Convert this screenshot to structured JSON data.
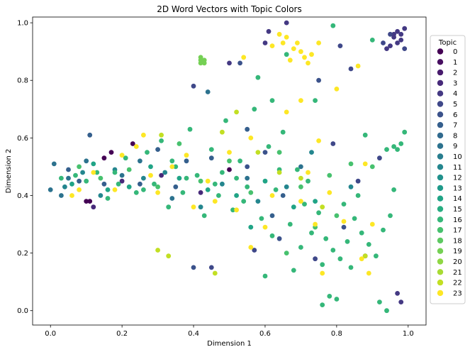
{
  "chart_data": {
    "type": "scatter",
    "title": "2D Word Vectors with Topic Colors",
    "xlabel": "Dimension 1",
    "ylabel": "Dimension 2",
    "xlim": [
      -0.05,
      1.05
    ],
    "ylim": [
      -0.05,
      1.02
    ],
    "xticks": [
      "0.0",
      "0.2",
      "0.4",
      "0.6",
      "0.8",
      "1.0"
    ],
    "xtick_values": [
      0.0,
      0.2,
      0.4,
      0.6,
      0.8,
      1.0
    ],
    "yticks": [
      "0.0",
      "0.2",
      "0.4",
      "0.6",
      "0.8",
      "1.0"
    ],
    "ytick_values": [
      0.0,
      0.2,
      0.4,
      0.6,
      0.8,
      1.0
    ],
    "grid": false,
    "legend": {
      "title": "Topic",
      "placement": "right",
      "entries": [
        "0",
        "1",
        "2",
        "3",
        "4",
        "5",
        "6",
        "7",
        "8",
        "9",
        "10",
        "11",
        "12",
        "13",
        "14",
        "15",
        "16",
        "17",
        "18",
        "19",
        "20",
        "21",
        "22",
        "23"
      ]
    },
    "colors": [
      "#440154",
      "#470e61",
      "#481b6d",
      "#472a7a",
      "#443983",
      "#3f4889",
      "#3b528b",
      "#355f8d",
      "#306a8e",
      "#2c728e",
      "#287d8e",
      "#24868e",
      "#21918c",
      "#1f9a8a",
      "#20a486",
      "#27ad81",
      "#35b779",
      "#47c16e",
      "#5ec962",
      "#75d054",
      "#8fd744",
      "#a8db34",
      "#c2df23",
      "#fde725"
    ],
    "series": [
      {
        "topic": 0,
        "points": [
          [
            0.11,
            0.38
          ],
          [
            0.17,
            0.55
          ],
          [
            0.23,
            0.58
          ],
          [
            0.5,
            0.49
          ],
          [
            0.15,
            0.53
          ],
          [
            0.1,
            0.38
          ]
        ]
      },
      {
        "topic": 3,
        "points": [
          [
            0.12,
            0.36
          ],
          [
            0.2,
            0.45
          ],
          [
            0.42,
            0.41
          ],
          [
            0.31,
            0.47
          ]
        ]
      },
      {
        "topic": 4,
        "points": [
          [
            0.95,
            0.92
          ],
          [
            0.96,
            0.96
          ],
          [
            0.97,
            0.97
          ],
          [
            0.98,
            0.94
          ],
          [
            0.99,
            0.98
          ],
          [
            0.98,
            0.96
          ],
          [
            0.96,
            0.95
          ],
          [
            0.97,
            0.93
          ],
          [
            0.94,
            0.91
          ],
          [
            0.66,
            1.0
          ],
          [
            0.61,
            0.97
          ],
          [
            0.98,
            0.03
          ],
          [
            0.97,
            0.06
          ],
          [
            0.5,
            0.86
          ],
          [
            0.6,
            0.93
          ]
        ]
      },
      {
        "topic": 5,
        "points": [
          [
            0.79,
            0.58
          ],
          [
            0.81,
            0.92
          ],
          [
            0.95,
            0.96
          ],
          [
            0.93,
            0.93
          ],
          [
            0.99,
            0.91
          ],
          [
            0.84,
            0.84
          ],
          [
            0.4,
            0.78
          ],
          [
            0.57,
            0.21
          ],
          [
            0.86,
            0.45
          ],
          [
            0.92,
            0.53
          ],
          [
            0.45,
            0.15
          ],
          [
            0.88,
            0.19
          ],
          [
            0.74,
            0.18
          ]
        ]
      },
      {
        "topic": 6,
        "points": [
          [
            0.4,
            0.15
          ],
          [
            0.53,
            0.86
          ],
          [
            0.75,
            0.8
          ],
          [
            0.6,
            0.55
          ],
          [
            0.55,
            0.5
          ],
          [
            0.64,
            0.25
          ],
          [
            0.82,
            0.29
          ]
        ]
      },
      {
        "topic": 7,
        "points": [
          [
            0.05,
            0.49
          ],
          [
            0.08,
            0.45
          ],
          [
            0.11,
            0.61
          ],
          [
            0.15,
            0.44
          ],
          [
            0.25,
            0.44
          ],
          [
            0.35,
            0.43
          ],
          [
            0.38,
            0.52
          ],
          [
            0.45,
            0.53
          ],
          [
            0.55,
            0.63
          ],
          [
            0.65,
            0.4
          ],
          [
            0.62,
            0.33
          ],
          [
            0.3,
            0.56
          ]
        ]
      },
      {
        "topic": 9,
        "points": [
          [
            0.0,
            0.42
          ],
          [
            0.01,
            0.51
          ],
          [
            0.03,
            0.4
          ],
          [
            0.05,
            0.46
          ],
          [
            0.1,
            0.52
          ],
          [
            0.2,
            0.47
          ],
          [
            0.25,
            0.52
          ],
          [
            0.34,
            0.39
          ],
          [
            0.44,
            0.76
          ],
          [
            0.55,
            0.46
          ],
          [
            0.7,
            0.5
          ]
        ]
      },
      {
        "topic": 11,
        "points": [
          [
            0.04,
            0.43
          ],
          [
            0.09,
            0.48
          ],
          [
            0.14,
            0.4
          ],
          [
            0.18,
            0.49
          ],
          [
            0.26,
            0.46
          ],
          [
            0.32,
            0.48
          ],
          [
            0.42,
            0.36
          ],
          [
            0.48,
            0.44
          ],
          [
            0.58,
            0.38
          ],
          [
            0.66,
            0.43
          ],
          [
            0.73,
            0.55
          ],
          [
            0.84,
            0.43
          ]
        ]
      },
      {
        "topic": 14,
        "points": [
          [
            0.06,
            0.44
          ],
          [
            0.12,
            0.51
          ],
          [
            0.16,
            0.42
          ],
          [
            0.22,
            0.43
          ],
          [
            0.28,
            0.5
          ],
          [
            0.36,
            0.46
          ],
          [
            0.44,
            0.42
          ],
          [
            0.52,
            0.4
          ],
          [
            0.6,
            0.45
          ],
          [
            0.68,
            0.36
          ],
          [
            0.74,
            0.38
          ],
          [
            0.56,
            0.29
          ]
        ]
      },
      {
        "topic": 16,
        "points": [
          [
            0.03,
            0.46
          ],
          [
            0.07,
            0.47
          ],
          [
            0.1,
            0.45
          ],
          [
            0.13,
            0.48
          ],
          [
            0.16,
            0.39
          ],
          [
            0.19,
            0.44
          ],
          [
            0.21,
            0.53
          ],
          [
            0.24,
            0.41
          ],
          [
            0.27,
            0.55
          ],
          [
            0.29,
            0.44
          ],
          [
            0.31,
            0.59
          ],
          [
            0.33,
            0.36
          ],
          [
            0.35,
            0.5
          ],
          [
            0.37,
            0.41
          ],
          [
            0.39,
            0.63
          ],
          [
            0.41,
            0.47
          ],
          [
            0.43,
            0.33
          ],
          [
            0.45,
            0.56
          ],
          [
            0.47,
            0.4
          ],
          [
            0.49,
            0.66
          ],
          [
            0.51,
            0.35
          ],
          [
            0.53,
            0.52
          ],
          [
            0.55,
            0.43
          ],
          [
            0.57,
            0.7
          ],
          [
            0.59,
            0.32
          ],
          [
            0.61,
            0.57
          ],
          [
            0.63,
            0.42
          ],
          [
            0.65,
            0.62
          ],
          [
            0.67,
            0.3
          ],
          [
            0.69,
            0.49
          ],
          [
            0.71,
            0.37
          ],
          [
            0.73,
            0.27
          ],
          [
            0.75,
            0.34
          ],
          [
            0.77,
            0.25
          ],
          [
            0.79,
            0.21
          ],
          [
            0.81,
            0.18
          ],
          [
            0.83,
            0.24
          ],
          [
            0.85,
            0.32
          ],
          [
            0.87,
            0.27
          ],
          [
            0.89,
            0.23
          ],
          [
            0.91,
            0.19
          ],
          [
            0.93,
            0.28
          ],
          [
            0.95,
            0.33
          ],
          [
            0.97,
            0.56
          ],
          [
            0.96,
            0.57
          ],
          [
            0.98,
            0.58
          ],
          [
            0.94,
            0.56
          ],
          [
            0.9,
            0.94
          ],
          [
            0.79,
            0.99
          ],
          [
            0.76,
            0.02
          ],
          [
            0.78,
            0.05
          ],
          [
            0.8,
            0.04
          ],
          [
            0.94,
            0.0
          ],
          [
            0.92,
            0.03
          ],
          [
            0.99,
            0.62
          ],
          [
            0.96,
            0.42
          ],
          [
            0.88,
            0.61
          ],
          [
            0.74,
            0.73
          ],
          [
            0.62,
            0.73
          ],
          [
            0.58,
            0.81
          ],
          [
            0.66,
            0.89
          ],
          [
            0.48,
            0.48
          ],
          [
            0.52,
            0.46
          ],
          [
            0.38,
            0.46
          ],
          [
            0.26,
            0.42
          ],
          [
            0.18,
            0.48
          ],
          [
            0.34,
            0.52
          ],
          [
            0.46,
            0.44
          ],
          [
            0.54,
            0.38
          ],
          [
            0.64,
            0.49
          ],
          [
            0.72,
            0.45
          ],
          [
            0.82,
            0.37
          ],
          [
            0.86,
            0.4
          ],
          [
            0.62,
            0.26
          ],
          [
            0.7,
            0.22
          ],
          [
            0.68,
            0.14
          ],
          [
            0.76,
            0.16
          ],
          [
            0.84,
            0.15
          ],
          [
            0.6,
            0.12
          ]
        ]
      },
      {
        "topic": 17,
        "points": [
          [
            0.08,
            0.5
          ],
          [
            0.14,
            0.46
          ],
          [
            0.22,
            0.49
          ],
          [
            0.3,
            0.43
          ],
          [
            0.36,
            0.58
          ],
          [
            0.42,
            0.45
          ],
          [
            0.5,
            0.52
          ],
          [
            0.56,
            0.41
          ],
          [
            0.64,
            0.55
          ],
          [
            0.7,
            0.43
          ],
          [
            0.78,
            0.47
          ],
          [
            0.84,
            0.51
          ],
          [
            0.9,
            0.5
          ],
          [
            0.74,
            0.29
          ],
          [
            0.66,
            0.2
          ],
          [
            0.8,
            0.33
          ]
        ]
      },
      {
        "topic": 19,
        "points": [
          [
            0.42,
            0.88
          ],
          [
            0.42,
            0.87
          ],
          [
            0.43,
            0.86
          ],
          [
            0.42,
            0.86
          ],
          [
            0.43,
            0.87
          ]
        ]
      },
      {
        "topic": 22,
        "points": [
          [
            0.31,
            0.61
          ],
          [
            0.46,
            0.13
          ],
          [
            0.3,
            0.21
          ],
          [
            0.33,
            0.19
          ],
          [
            0.48,
            0.62
          ],
          [
            0.52,
            0.69
          ],
          [
            0.58,
            0.55
          ],
          [
            0.64,
            0.48
          ],
          [
            0.7,
            0.46
          ],
          [
            0.76,
            0.36
          ],
          [
            0.88,
            0.19
          ]
        ]
      },
      {
        "topic": 23,
        "points": [
          [
            0.62,
            0.92
          ],
          [
            0.66,
            0.95
          ],
          [
            0.68,
            0.91
          ],
          [
            0.7,
            0.9
          ],
          [
            0.71,
            0.88
          ],
          [
            0.72,
            0.86
          ],
          [
            0.69,
            0.93
          ],
          [
            0.73,
            0.89
          ],
          [
            0.75,
            0.93
          ],
          [
            0.67,
            0.87
          ],
          [
            0.64,
            0.96
          ],
          [
            0.65,
            0.93
          ],
          [
            0.75,
            0.59
          ],
          [
            0.72,
            0.48
          ],
          [
            0.62,
            0.4
          ],
          [
            0.54,
            0.88
          ],
          [
            0.5,
            0.55
          ],
          [
            0.44,
            0.45
          ],
          [
            0.38,
            0.54
          ],
          [
            0.34,
            0.5
          ],
          [
            0.28,
            0.47
          ],
          [
            0.24,
            0.57
          ],
          [
            0.18,
            0.42
          ],
          [
            0.12,
            0.48
          ],
          [
            0.08,
            0.42
          ],
          [
            0.06,
            0.4
          ],
          [
            0.26,
            0.61
          ],
          [
            0.3,
            0.41
          ],
          [
            0.4,
            0.36
          ],
          [
            0.46,
            0.38
          ],
          [
            0.56,
            0.6
          ],
          [
            0.66,
            0.69
          ],
          [
            0.7,
            0.73
          ],
          [
            0.8,
            0.77
          ],
          [
            0.86,
            0.85
          ],
          [
            0.9,
            0.3
          ],
          [
            0.88,
            0.51
          ],
          [
            0.82,
            0.31
          ],
          [
            0.6,
            0.29
          ],
          [
            0.52,
            0.35
          ],
          [
            0.56,
            0.22
          ],
          [
            0.7,
            0.38
          ],
          [
            0.78,
            0.41
          ],
          [
            0.74,
            0.3
          ],
          [
            0.87,
            0.18
          ],
          [
            0.89,
            0.13
          ],
          [
            0.76,
            0.13
          ],
          [
            0.2,
            0.54
          ]
        ]
      }
    ]
  }
}
